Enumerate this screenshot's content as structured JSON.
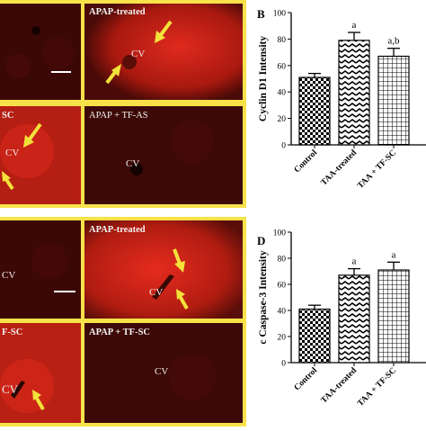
{
  "figure": {
    "top_panels": [
      {
        "label": "",
        "cv": ""
      },
      {
        "label": "APAP-treated",
        "cv": "CV"
      },
      {
        "label": "SC",
        "cv": "CV"
      },
      {
        "label": "APAP + TF-AS",
        "cv": "CV"
      }
    ],
    "bottom_panels": [
      {
        "label": "",
        "cv": "CV"
      },
      {
        "label": "APAP-treated",
        "cv": "CV"
      },
      {
        "label": "F-SC",
        "cv": "CV"
      },
      {
        "label": "APAP + TF-SC",
        "cv": "CV"
      }
    ]
  },
  "chart_data": [
    {
      "type": "bar",
      "panel_letter": "B",
      "ylabel": "Cyclin D1 Intensity",
      "categories": [
        "Control",
        "TAA-treated",
        "TAA + TF-SC"
      ],
      "values": [
        51,
        79,
        67
      ],
      "errors": [
        3,
        6,
        6
      ],
      "annotations": [
        "",
        "a",
        "a,b"
      ],
      "ylim": [
        0,
        100
      ],
      "yticks": [
        0,
        20,
        40,
        60,
        80,
        100
      ],
      "patterns": [
        "checker",
        "zigzag",
        "grid"
      ],
      "colors": {
        "bar_fill": "#ffffff",
        "ink": "#000000"
      }
    },
    {
      "type": "bar",
      "panel_letter": "D",
      "ylabel": "c Caspase-3 Intensity",
      "categories": [
        "Control",
        "TAA-treated",
        "TAA + TF-SC"
      ],
      "values": [
        41,
        67,
        71
      ],
      "errors": [
        3,
        5,
        6
      ],
      "annotations": [
        "",
        "a",
        "a"
      ],
      "ylim": [
        0,
        100
      ],
      "yticks": [
        0,
        20,
        40,
        60,
        80,
        100
      ],
      "patterns": [
        "checker",
        "zigzag",
        "grid"
      ],
      "colors": {
        "bar_fill": "#ffffff",
        "ink": "#000000"
      }
    }
  ],
  "colors": {
    "frame": "#f7e24a",
    "tissue_base": "#3a0a07",
    "stain": "#e8281e",
    "arrow": "#f2e23a"
  }
}
